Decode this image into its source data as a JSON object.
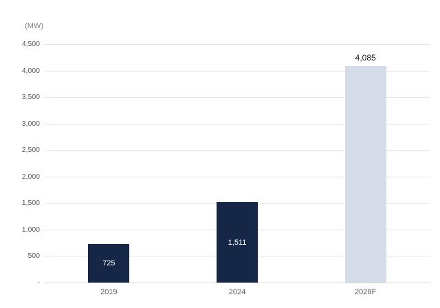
{
  "chart_data": {
    "type": "bar",
    "title": "",
    "unit_label": "(MW)",
    "categories": [
      "2019",
      "2024",
      "2028F"
    ],
    "values": [
      725,
      1511,
      4085
    ],
    "value_labels": [
      "725",
      "1,511",
      "4,085"
    ],
    "bar_colors": [
      "#152647",
      "#152647",
      "#d5dbe7"
    ],
    "value_label_placement": [
      "inside",
      "inside",
      "above"
    ],
    "value_label_colors": [
      "#ffffff",
      "#ffffff",
      "#1a1a1a"
    ],
    "ylim": [
      0,
      4500
    ],
    "ytick_step": 500,
    "ytick_labels": [
      "-",
      "500",
      "1,000",
      "1,500",
      "2,000",
      "2,500",
      "3,000",
      "3,500",
      "4,000",
      "4,500"
    ],
    "grid": true,
    "gridline_color": "#e2e2e2",
    "axis_text_color": "#595959",
    "legend": null
  }
}
